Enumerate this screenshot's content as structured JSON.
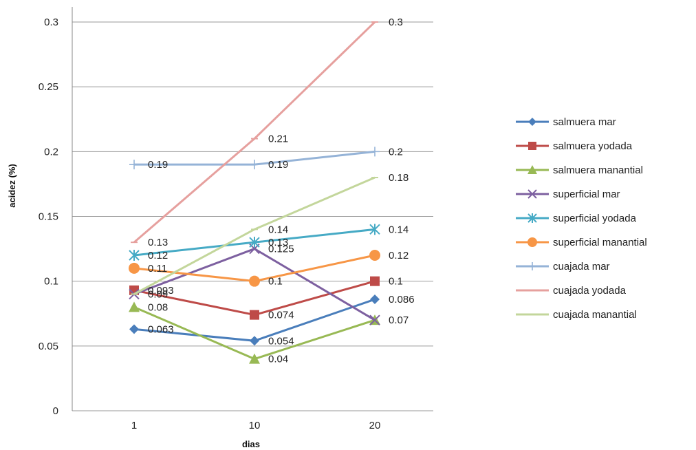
{
  "chart_data": {
    "type": "line",
    "categories": [
      "1",
      "10",
      "20"
    ],
    "xlabel": "dias",
    "ylabel": "acidez (%)",
    "ylim": [
      0,
      0.3
    ],
    "yticks": [
      "0",
      "0.05",
      "0.1",
      "0.15",
      "0.2",
      "0.25",
      "0.3"
    ],
    "grid": "horizontal",
    "legend_position": "right",
    "series": [
      {
        "name": "salmuera  mar",
        "values": [
          0.063,
          0.054,
          0.086
        ],
        "labels": [
          "0.063",
          "0.054",
          "0.086"
        ],
        "color": "#4a7ebb",
        "marker": "diamond"
      },
      {
        "name": "salmuera yodada",
        "values": [
          0.093,
          0.074,
          0.1
        ],
        "labels": [
          "0.093",
          "0.074",
          "0.1"
        ],
        "color": "#be4b48",
        "marker": "square"
      },
      {
        "name": "salmuera  manantial",
        "values": [
          0.08,
          0.04,
          0.07
        ],
        "labels": [
          "0.08",
          "0.04",
          ""
        ],
        "color": "#98b954",
        "marker": "triangle"
      },
      {
        "name": "superficial  mar",
        "values": [
          0.09,
          0.125,
          0.07
        ],
        "labels": [
          "0.09",
          "0.125",
          "0.07"
        ],
        "color": "#7d60a0",
        "marker": "x"
      },
      {
        "name": "superficial yodada",
        "values": [
          0.12,
          0.13,
          0.14
        ],
        "labels": [
          "0.12",
          "0.13",
          "0.14"
        ],
        "color": "#46aac5",
        "marker": "star"
      },
      {
        "name": "superficial manantial",
        "values": [
          0.11,
          0.1,
          0.12
        ],
        "labels": [
          "0.11",
          "0.1",
          "0.12"
        ],
        "color": "#f79646",
        "marker": "circle"
      },
      {
        "name": "cuajada mar",
        "values": [
          0.19,
          0.19,
          0.2
        ],
        "labels": [
          "0.19",
          "0.19",
          "0.2"
        ],
        "color": "#95b3d7",
        "marker": "plus"
      },
      {
        "name": "cuajada yodada",
        "values": [
          0.13,
          0.21,
          0.3
        ],
        "labels": [
          "0.13",
          "0.21",
          "0.3"
        ],
        "color": "#e6a09e",
        "marker": "dash"
      },
      {
        "name": "cuajada manantial",
        "values": [
          0.09,
          0.14,
          0.18
        ],
        "labels": [
          "",
          "0.14",
          "0.18"
        ],
        "color": "#c3d69b",
        "marker": "dash"
      }
    ]
  }
}
